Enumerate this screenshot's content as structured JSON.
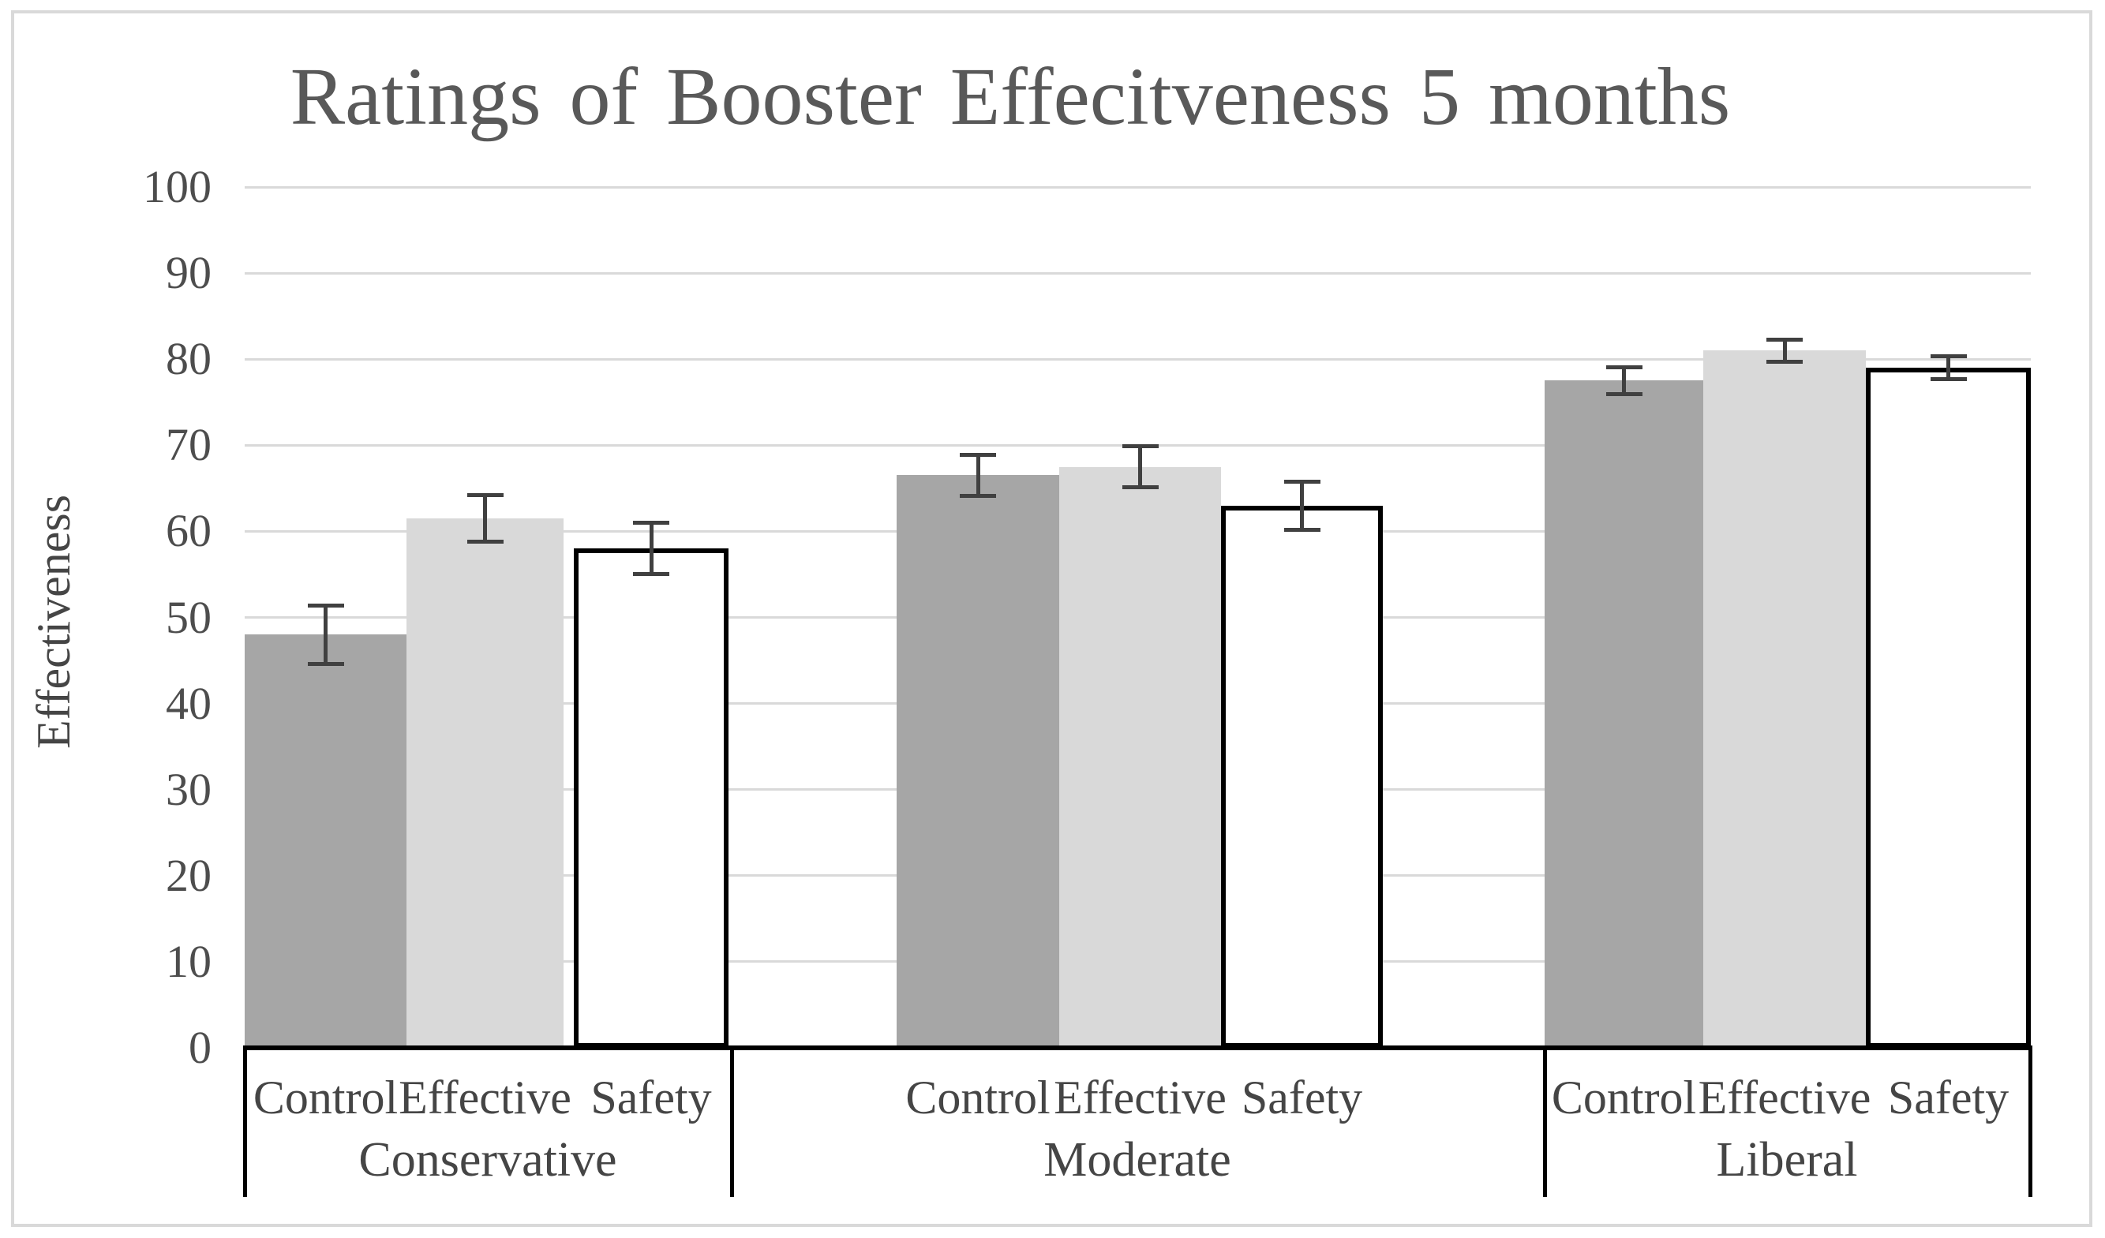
{
  "chart_data": {
    "type": "bar",
    "title": "Ratings of Booster Effecitveness 5 months",
    "xlabel": "",
    "ylabel": "Effectiveness",
    "ylim": [
      0,
      100
    ],
    "yticks": [
      0,
      10,
      20,
      30,
      40,
      50,
      60,
      70,
      80,
      90,
      100
    ],
    "grid": true,
    "legend": "none",
    "groups": [
      "Conservative",
      "Moderate",
      "Liberal"
    ],
    "series_labels": [
      "Control",
      "Effective",
      "Safety"
    ],
    "series": [
      {
        "name": "Control",
        "fill": "#a6a6a6",
        "border": "none",
        "values": [
          48,
          66.5,
          77.5
        ],
        "errors": [
          3.4,
          2.4,
          1.6
        ]
      },
      {
        "name": "Effective",
        "fill": "#d9d9d9",
        "border": "none",
        "values": [
          61.5,
          67.5,
          81
        ],
        "errors": [
          2.7,
          2.4,
          1.3
        ]
      },
      {
        "name": "Safety",
        "fill": "#ffffff",
        "border": "#000000",
        "values": [
          58,
          63,
          79
        ],
        "errors": [
          3.0,
          2.8,
          1.3
        ]
      }
    ],
    "style": {
      "gridline_color": "#d9d9d9",
      "axis_color": "#000000",
      "error_bar_color": "#404040",
      "text_color": "#454545",
      "title_color": "#595959",
      "frame_color": "#d9d9d9",
      "background": "#ffffff"
    }
  }
}
